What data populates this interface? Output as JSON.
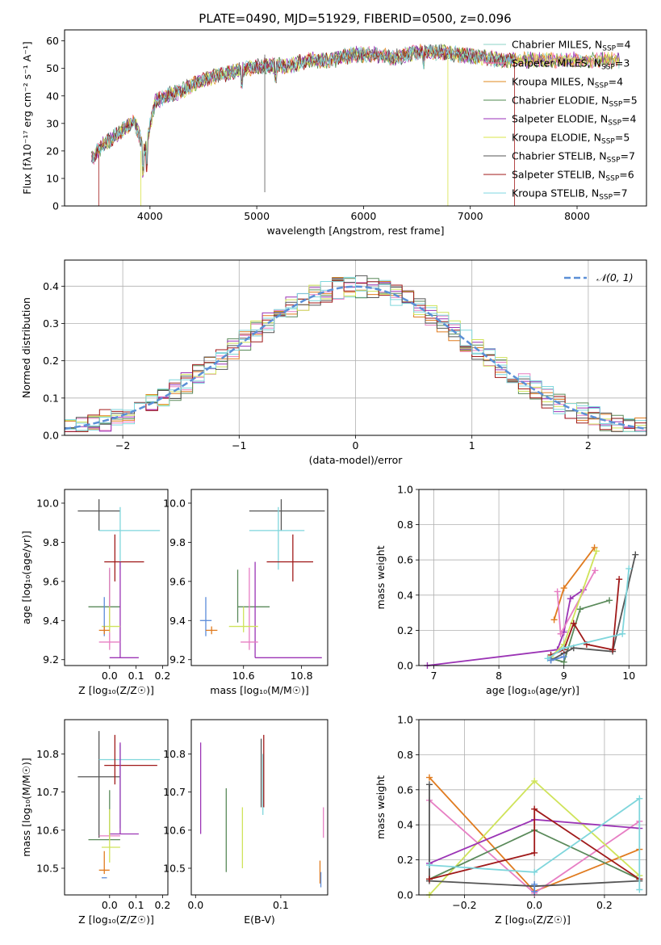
{
  "colors": {
    "Chabrier MILES": "#8dd3c7",
    "Salpeter MILES": "#ff6fa8",
    "Kroupa MILES": "#e08a1e",
    "Chabrier ELODIE": "#4e8a4e",
    "Salpeter ELODIE": "#9a2fb8",
    "Kroupa ELODIE": "#d8e44a",
    "Chabrier STELIB": "#555555",
    "Salpeter STELIB": "#a01818",
    "Kroupa STELIB": "#7fd7e0",
    "pink": "#e77fc4",
    "blue": "#5b8bd9",
    "orange": "#e07b1f",
    "green": "#5a8a5a",
    "purple": "#9b34b5",
    "yellow": "#cfe35a",
    "gray": "#555555",
    "red": "#a01a1a",
    "cyan": "#7fd6dc",
    "normal": "#5b8fd6"
  },
  "chart_data": [
    {
      "type": "line",
      "title": "PLATE=0490, MJD=51929, FIBERID=0500, z=0.096",
      "xlabel": "wavelength [Angstrom, rest frame]",
      "ylabel": "Flux [fλ10⁻¹⁷ erg cm⁻² s⁻¹ A⁻¹]",
      "xlim": [
        3200,
        8650
      ],
      "ylim": [
        0,
        64
      ],
      "xticks": [
        4000,
        5000,
        6000,
        7000,
        8000
      ],
      "yticks": [
        0,
        10,
        20,
        30,
        40,
        50,
        60
      ],
      "spectrum_anchors": {
        "wavelength": [
          3450,
          3550,
          3700,
          3850,
          3950,
          4050,
          4150,
          4300,
          4500,
          4700,
          4900,
          5100,
          5300,
          5500,
          5700,
          5900,
          6100,
          6300,
          6500,
          6700,
          6900,
          7100,
          7300,
          7420
        ],
        "flux": [
          17,
          22,
          26,
          31,
          20,
          38,
          40,
          42,
          46,
          48,
          50,
          51,
          51,
          53,
          53,
          55,
          55,
          54,
          56,
          56,
          55,
          54,
          53,
          53
        ]
      },
      "legend": [
        {
          "name": "Chabrier MILES",
          "nssp": "4"
        },
        {
          "name": "Salpeter MILES",
          "nssp": "3"
        },
        {
          "name": "Kroupa MILES",
          "nssp": "4"
        },
        {
          "name": "Chabrier ELODIE",
          "nssp": "5"
        },
        {
          "name": "Salpeter ELODIE",
          "nssp": "4"
        },
        {
          "name": "Kroupa ELODIE",
          "nssp": "5"
        },
        {
          "name": "Chabrier STELIB",
          "nssp": "7"
        },
        {
          "name": "Salpeter STELIB",
          "nssp": "6"
        },
        {
          "name": "Kroupa STELIB",
          "nssp": "7"
        }
      ],
      "legend_loc": "right",
      "grid": false
    },
    {
      "type": "line",
      "xlabel": "(data-model)/error",
      "ylabel": "Normed distribution",
      "xlim": [
        -2.5,
        2.5
      ],
      "ylim": [
        0,
        0.47
      ],
      "xticks": [
        -2,
        -1,
        0,
        1,
        2
      ],
      "yticks": [
        0.0,
        0.1,
        0.2,
        0.3,
        0.4
      ],
      "legend": [
        "𝒩(0, 1)"
      ],
      "legend_loc": "top-right",
      "grid": true,
      "normal": {
        "mean": 0,
        "sigma": 1
      },
      "histogram_bin_width": 0.1
    },
    {
      "type": "scatter",
      "xlabel": "Z [log₁₀(Z/Z☉)]",
      "ylabel": "age  [log₁₀(age/yr)]",
      "xlim": [
        -0.17,
        0.22
      ],
      "ylim": [
        9.17,
        10.07
      ],
      "xticks": [
        0.0,
        0.1,
        0.2
      ],
      "yticks": [
        9.2,
        9.4,
        9.6,
        9.8,
        10.0
      ],
      "points": [
        {
          "c": "gray",
          "x": -0.04,
          "xl": 0.08,
          "xh": 0.08,
          "y": 9.96,
          "yl": 0.1,
          "yh": 0.06
        },
        {
          "c": "cyan",
          "x": 0.04,
          "xl": 0.08,
          "xh": 0.15,
          "y": 9.86,
          "yl": 0.2,
          "yh": 0.12
        },
        {
          "c": "red",
          "x": 0.02,
          "xl": 0.04,
          "xh": 0.11,
          "y": 9.7,
          "yl": 0.1,
          "yh": 0.14
        },
        {
          "c": "green",
          "x": 0.0,
          "xl": 0.08,
          "xh": 0.04,
          "y": 9.47,
          "yl": 0.08,
          "yh": 0.19
        },
        {
          "c": "purple",
          "x": 0.04,
          "xl": 0.04,
          "xh": 0.07,
          "y": 9.21,
          "yl": 0.0,
          "yh": 0.49
        },
        {
          "c": "pink",
          "x": 0.0,
          "xl": 0.04,
          "xh": 0.04,
          "y": 9.29,
          "yl": 0.04,
          "yh": 0.38
        },
        {
          "c": "yellow",
          "x": 0.0,
          "xl": 0.03,
          "xh": 0.04,
          "y": 9.37,
          "yl": 0.03,
          "yh": 0.1
        },
        {
          "c": "blue",
          "x": -0.02,
          "xl": 0.0,
          "xh": 0.0,
          "y": 9.4,
          "yl": 0.08,
          "yh": 0.12
        },
        {
          "c": "orange",
          "x": -0.02,
          "xl": 0.02,
          "xh": 0.02,
          "y": 9.35,
          "yl": 0.02,
          "yh": 0.02
        }
      ]
    },
    {
      "type": "scatter",
      "xlabel": "mass [log₁₀(M/M☉)]",
      "ylabel": "",
      "xlim": [
        10.42,
        10.89
      ],
      "ylim": [
        9.17,
        10.07
      ],
      "xticks": [
        10.6,
        10.8
      ],
      "yticks": [
        9.2,
        9.4,
        9.6,
        9.8,
        10.0
      ],
      "points": [
        {
          "c": "gray",
          "x": 10.73,
          "xl": 0.11,
          "xh": 0.15,
          "y": 9.96,
          "yl": 0.1,
          "yh": 0.06
        },
        {
          "c": "cyan",
          "x": 10.72,
          "xl": 0.1,
          "xh": 0.09,
          "y": 9.86,
          "yl": 0.2,
          "yh": 0.12
        },
        {
          "c": "red",
          "x": 10.77,
          "xl": 0.09,
          "xh": 0.07,
          "y": 9.7,
          "yl": 0.1,
          "yh": 0.14
        },
        {
          "c": "green",
          "x": 10.58,
          "xl": 0.0,
          "xh": 0.11,
          "y": 9.47,
          "yl": 0.08,
          "yh": 0.19
        },
        {
          "c": "purple",
          "x": 10.64,
          "xl": 0.0,
          "xh": 0.23,
          "y": 9.21,
          "yl": 0.0,
          "yh": 0.49
        },
        {
          "c": "pink",
          "x": 10.62,
          "xl": 0.03,
          "xh": 0.03,
          "y": 9.29,
          "yl": 0.04,
          "yh": 0.38
        },
        {
          "c": "yellow",
          "x": 10.6,
          "xl": 0.05,
          "xh": 0.05,
          "y": 9.37,
          "yl": 0.03,
          "yh": 0.1
        },
        {
          "c": "blue",
          "x": 10.47,
          "xl": 0.02,
          "xh": 0.02,
          "y": 9.4,
          "yl": 0.08,
          "yh": 0.12
        },
        {
          "c": "orange",
          "x": 10.49,
          "xl": 0.02,
          "xh": 0.02,
          "y": 9.35,
          "yl": 0.02,
          "yh": 0.02
        }
      ]
    },
    {
      "type": "line",
      "xlabel": "age  [log₁₀(age/yr)]",
      "ylabel": "mass weight",
      "xlim": [
        6.77,
        10.27
      ],
      "ylim": [
        0,
        1.0
      ],
      "xticks": [
        7,
        8,
        9,
        10
      ],
      "yticks": [
        0.0,
        0.2,
        0.4,
        0.6,
        0.8,
        1.0
      ],
      "grid": true,
      "series": [
        {
          "c": "purple",
          "x": [
            6.9,
            8.9,
            9.0,
            9.1,
            9.3
          ],
          "y": [
            0.0,
            0.09,
            0.19,
            0.38,
            0.43
          ]
        },
        {
          "c": "orange",
          "x": [
            8.85,
            9.0,
            9.47
          ],
          "y": [
            0.26,
            0.44,
            0.67
          ]
        },
        {
          "c": "pink",
          "x": [
            8.9,
            8.95,
            9.48
          ],
          "y": [
            0.42,
            0.18,
            0.54
          ]
        },
        {
          "c": "yellow",
          "x": [
            8.8,
            9.0,
            9.5
          ],
          "y": [
            0.05,
            0.12,
            0.65
          ]
        },
        {
          "c": "green",
          "x": [
            8.8,
            9.0,
            9.25,
            9.7
          ],
          "y": [
            0.04,
            0.02,
            0.32,
            0.37
          ]
        },
        {
          "c": "gray",
          "x": [
            8.8,
            9.0,
            9.15,
            9.75,
            10.1
          ],
          "y": [
            0.03,
            0.07,
            0.1,
            0.08,
            0.63
          ]
        },
        {
          "c": "red",
          "x": [
            8.8,
            9.0,
            9.15,
            9.35,
            9.75,
            9.85
          ],
          "y": [
            0.06,
            0.09,
            0.24,
            0.12,
            0.09,
            0.49
          ]
        },
        {
          "c": "cyan",
          "x": [
            8.75,
            9.0,
            9.9,
            10.0
          ],
          "y": [
            0.04,
            0.1,
            0.18,
            0.55
          ]
        },
        {
          "c": "blue",
          "x": [
            8.8,
            9.0
          ],
          "y": [
            0.03,
            0.05
          ]
        }
      ]
    },
    {
      "type": "scatter",
      "xlabel": "Z [log₁₀(Z/Z☉)]",
      "ylabel": "mass [log₁₀(M/M☉)]",
      "xlim": [
        -0.17,
        0.22
      ],
      "ylim": [
        10.43,
        10.89
      ],
      "xticks": [
        0.0,
        0.1,
        0.2
      ],
      "yticks": [
        10.5,
        10.6,
        10.7,
        10.8
      ],
      "points": [
        {
          "c": "gray",
          "x": -0.04,
          "xl": 0.08,
          "xh": 0.08,
          "y": 10.74,
          "yl": 0.16,
          "yh": 0.12
        },
        {
          "c": "cyan",
          "x": 0.04,
          "xl": 0.08,
          "xh": 0.15,
          "y": 10.785,
          "yl": 0.18,
          "yh": 0.04
        },
        {
          "c": "red",
          "x": 0.02,
          "xl": 0.04,
          "xh": 0.16,
          "y": 10.77,
          "yl": 0.05,
          "yh": 0.08
        },
        {
          "c": "green",
          "x": 0.0,
          "xl": 0.08,
          "xh": 0.04,
          "y": 10.575,
          "yl": 0.0,
          "yh": 0.13
        },
        {
          "c": "purple",
          "x": 0.04,
          "xl": 0.04,
          "xh": 0.07,
          "y": 10.59,
          "yl": 0.0,
          "yh": 0.24
        },
        {
          "c": "pink",
          "x": 0.0,
          "xl": 0.04,
          "xh": 0.04,
          "y": 10.585,
          "yl": 0.0,
          "yh": 0.0
        },
        {
          "c": "yellow",
          "x": 0.0,
          "xl": 0.03,
          "xh": 0.04,
          "y": 10.555,
          "yl": 0.04,
          "yh": 0.1
        },
        {
          "c": "blue",
          "x": -0.02,
          "xl": 0.01,
          "xh": 0.01,
          "y": 10.475,
          "yl": 0.0,
          "yh": 0.0
        },
        {
          "c": "orange",
          "x": -0.02,
          "xl": 0.02,
          "xh": 0.02,
          "y": 10.495,
          "yl": 0.01,
          "yh": 0.05
        }
      ]
    },
    {
      "type": "scatter",
      "xlabel": "E(B-V)",
      "ylabel": "",
      "xlim": [
        -0.005,
        0.155
      ],
      "ylim": [
        10.43,
        10.89
      ],
      "xticks": [
        0.0,
        0.1
      ],
      "yticks": [
        10.5,
        10.6,
        10.7,
        10.8
      ],
      "points": [
        {
          "c": "purple",
          "x": 0.006,
          "y": 10.7,
          "yl": 0.11,
          "yh": 0.13
        },
        {
          "c": "green",
          "x": 0.036,
          "y": 10.6,
          "yl": 0.11,
          "yh": 0.11
        },
        {
          "c": "yellow",
          "x": 0.055,
          "y": 10.55,
          "yl": 0.05,
          "yh": 0.11
        },
        {
          "c": "gray",
          "x": 0.077,
          "y": 10.78,
          "yl": 0.12,
          "yh": 0.06
        },
        {
          "c": "cyan",
          "x": 0.079,
          "y": 10.7,
          "yl": 0.06,
          "yh": 0.1
        },
        {
          "c": "red",
          "x": 0.08,
          "y": 10.74,
          "yl": 0.08,
          "yh": 0.11
        },
        {
          "c": "pink",
          "x": 0.15,
          "y": 10.62,
          "yl": 0.04,
          "yh": 0.04
        },
        {
          "c": "orange",
          "x": 0.146,
          "y": 10.49,
          "yl": 0.03,
          "yh": 0.03
        },
        {
          "c": "blue",
          "x": 0.147,
          "y": 10.47,
          "yl": 0.02,
          "yh": 0.02
        }
      ]
    },
    {
      "type": "line",
      "xlabel": "Z [log₁₀(Z/Z☉)]",
      "ylabel": "mass weight",
      "xlim": [
        -0.33,
        0.32
      ],
      "ylim": [
        0,
        1.0
      ],
      "xticks": [
        -0.2,
        0.0,
        0.2
      ],
      "yticks": [
        0.0,
        0.2,
        0.4,
        0.6,
        0.8,
        1.0
      ],
      "grid": true,
      "series": [
        {
          "c": "orange",
          "x": [
            -0.3,
            0.0,
            0.3
          ],
          "y": [
            0.67,
            0.02,
            0.26
          ]
        },
        {
          "c": "pink",
          "x": [
            -0.3,
            0.0,
            0.3
          ],
          "y": [
            0.54,
            0.01,
            0.42
          ]
        },
        {
          "c": "yellow",
          "x": [
            -0.3,
            0.0,
            0.3
          ],
          "y": [
            0.0,
            0.65,
            0.11
          ]
        },
        {
          "c": "purple",
          "x": [
            -0.3,
            0.0,
            0.3
          ],
          "y": [
            0.18,
            0.43,
            0.38
          ]
        },
        {
          "c": "green",
          "x": [
            -0.3,
            0.0,
            0.3
          ],
          "y": [
            0.09,
            0.37,
            0.09
          ]
        },
        {
          "c": "gray",
          "x": [
            -0.3,
            -0.3,
            0.0,
            0.3
          ],
          "y": [
            0.63,
            0.08,
            0.05,
            0.08
          ]
        },
        {
          "c": "red",
          "x": [
            -0.3,
            0.0,
            0.0,
            0.3
          ],
          "y": [
            0.09,
            0.24,
            0.49,
            0.09
          ]
        },
        {
          "c": "cyan",
          "x": [
            -0.3,
            0.0,
            0.3,
            0.3
          ],
          "y": [
            0.17,
            0.13,
            0.55,
            0.03
          ]
        },
        {
          "c": "blue",
          "x": [
            0.0,
            0.0
          ],
          "y": [
            0.02,
            0.06
          ]
        }
      ]
    }
  ]
}
